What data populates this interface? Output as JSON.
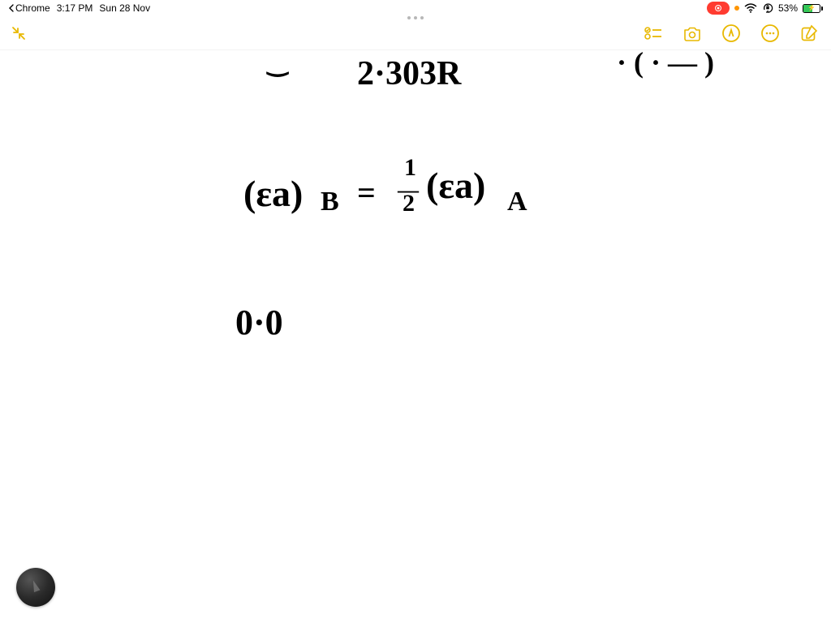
{
  "status": {
    "back_app": "Chrome",
    "time": "3:17 PM",
    "date": "Sun 28 Nov",
    "battery_pct_label": "53%",
    "battery_fill_pct": 53
  },
  "toolbar": {
    "icons": {
      "collapse": "collapse-icon",
      "checklist": "checklist-icon",
      "camera": "camera-icon",
      "markup": "markup-icon",
      "more": "more-icon",
      "compose": "compose-icon"
    },
    "accent_color": "#e8b800"
  },
  "handwriting": {
    "line1": "2·303R",
    "line1_frag_right": "· ( · — )",
    "line1_frag_left": "‿",
    "eq_left_open": "(εa)",
    "eq_left_sub": "B",
    "eq_equals": "=",
    "eq_frac_num": "1",
    "eq_frac_den": "2",
    "eq_right_open": "(εa)",
    "eq_right_sub": "A",
    "line3": "0·0"
  },
  "style": {
    "hand_font_size_main": 40,
    "hand_font_size_sub": 28,
    "stroke_color": "#000000"
  }
}
